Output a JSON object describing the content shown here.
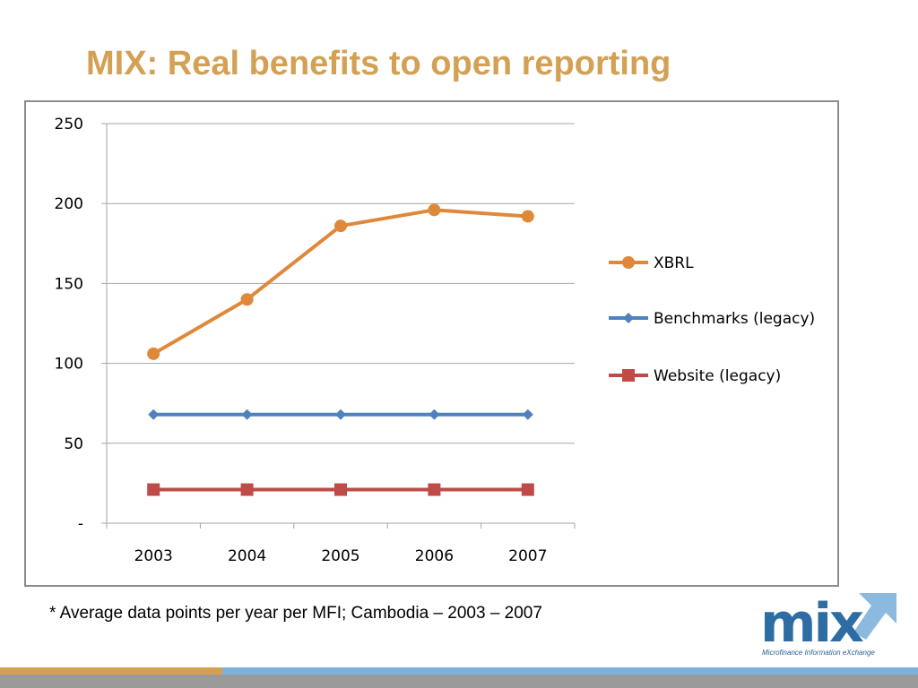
{
  "slide": {
    "title": "MIX: Real benefits to open reporting",
    "footnote": "* Average data points per year per MFI; Cambodia – 2003 – 2007",
    "logo_text": "mix",
    "logo_tagline": "Microfinance Information eXchange"
  },
  "colors": {
    "title": "#D4A054",
    "xbrl": "#E0883A",
    "benchmarks": "#4F81BD",
    "website": "#BE4B48",
    "grid": "#a6a6a6",
    "footer_orange": "#D4A054",
    "footer_blue": "#7FB2DA",
    "logo_blue": "#2E6DA4"
  },
  "chart_data": {
    "type": "line",
    "title": "",
    "xlabel": "",
    "ylabel": "",
    "categories": [
      "2003",
      "2004",
      "2005",
      "2006",
      "2007"
    ],
    "ylim": [
      0,
      250
    ],
    "yticks": [
      0,
      50,
      100,
      150,
      200,
      250
    ],
    "ytick_labels": [
      "-",
      "50",
      "100",
      "150",
      "200",
      "250"
    ],
    "grid": true,
    "legend_position": "right",
    "series": [
      {
        "name": "XBRL",
        "values": [
          106,
          140,
          186,
          196,
          192
        ],
        "marker": "circle",
        "color_key": "xbrl"
      },
      {
        "name": "Benchmarks (legacy)",
        "values": [
          68,
          68,
          68,
          68,
          68
        ],
        "marker": "diamond",
        "color_key": "benchmarks"
      },
      {
        "name": "Website (legacy)",
        "values": [
          21,
          21,
          21,
          21,
          21
        ],
        "marker": "square",
        "color_key": "website"
      }
    ]
  }
}
